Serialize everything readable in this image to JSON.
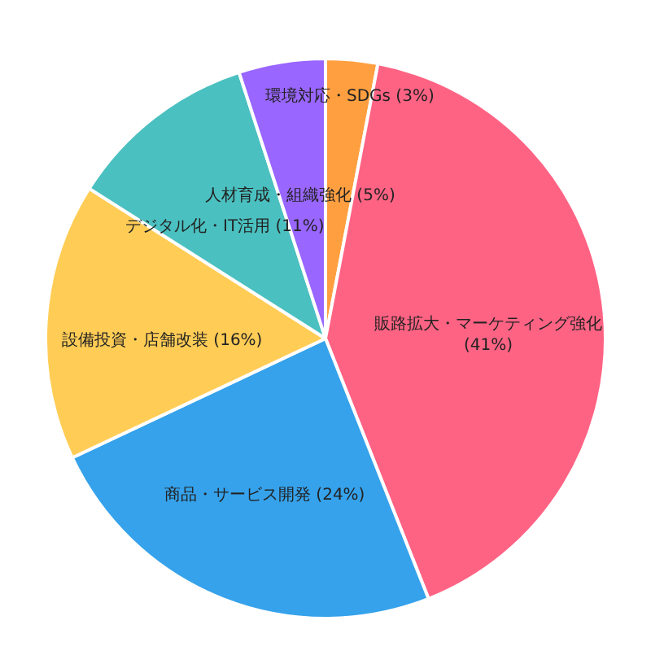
{
  "chart_data": {
    "type": "pie",
    "categories": [
      "環境対応・SDGs",
      "販路拡大・マーケティング強化",
      "商品・サービス開発",
      "設備投資・店舗改装",
      "デジタル化・IT活用",
      "人材育成・組織強化"
    ],
    "values": [
      3,
      41,
      24,
      16,
      11,
      5
    ],
    "value_labels": [
      "(3%)",
      "(41%)",
      "(24%)",
      "(16%)",
      "(11%)",
      "(5%)"
    ],
    "colors": [
      "#ff9f40",
      "#ff6384",
      "#36a2eb",
      "#ffcd56",
      "#4bc0c0",
      "#9966ff"
    ],
    "legend": false
  }
}
